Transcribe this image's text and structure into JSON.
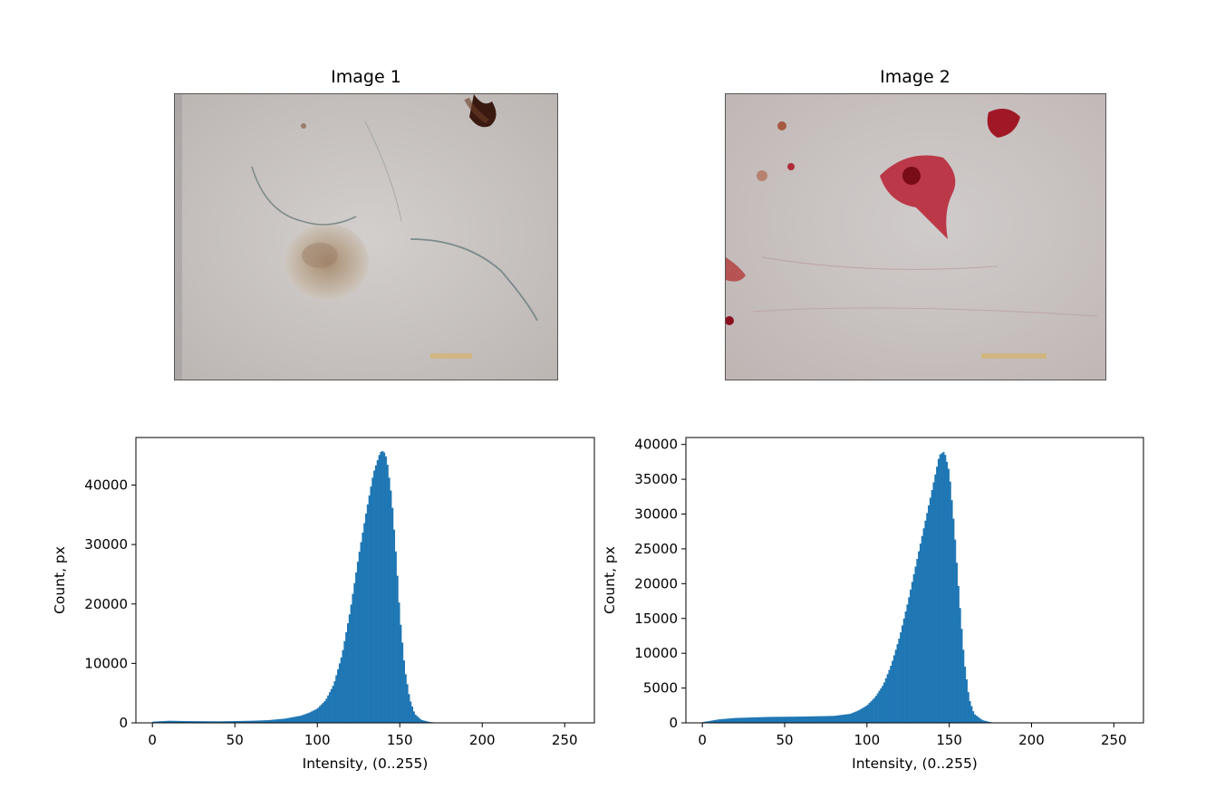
{
  "images": [
    {
      "title": "Image 1",
      "description_icon": "dermoscopy-photo-icon",
      "colors": {
        "skin": "#cdc8c5",
        "lesion": "#b79f86",
        "spot": "#3a1a10"
      }
    },
    {
      "title": "Image 2",
      "description_icon": "dermoscopy-photo-icon",
      "colors": {
        "skin": "#c9c3c1",
        "lesion": "#b8283a",
        "spot": "#7a0c16"
      }
    }
  ],
  "colors": {
    "bar": "#1f77b4",
    "axis": "#000000"
  },
  "chart_data": [
    {
      "type": "bar",
      "subtype": "histogram",
      "xlabel": "Intensity, (0..255)",
      "ylabel": "Count, px",
      "xlim": [
        -10,
        268
      ],
      "ylim": [
        0,
        48000
      ],
      "xticks": [
        0,
        50,
        100,
        150,
        200,
        250
      ],
      "yticks": [
        0,
        10000,
        20000,
        30000,
        40000
      ],
      "grid": false,
      "bin_width": 1,
      "keypoints": [
        [
          0,
          200
        ],
        [
          10,
          350
        ],
        [
          20,
          300
        ],
        [
          40,
          250
        ],
        [
          60,
          350
        ],
        [
          70,
          450
        ],
        [
          80,
          700
        ],
        [
          90,
          1200
        ],
        [
          95,
          1700
        ],
        [
          100,
          2400
        ],
        [
          105,
          3800
        ],
        [
          110,
          6500
        ],
        [
          115,
          11500
        ],
        [
          120,
          19000
        ],
        [
          125,
          28000
        ],
        [
          130,
          36000
        ],
        [
          134,
          42000
        ],
        [
          138,
          45500
        ],
        [
          140,
          45800
        ],
        [
          142,
          44500
        ],
        [
          145,
          38000
        ],
        [
          148,
          27000
        ],
        [
          150,
          18000
        ],
        [
          153,
          9000
        ],
        [
          156,
          4000
        ],
        [
          159,
          1500
        ],
        [
          163,
          500
        ],
        [
          168,
          150
        ],
        [
          172,
          40
        ],
        [
          180,
          0
        ],
        [
          255,
          0
        ]
      ]
    },
    {
      "type": "bar",
      "subtype": "histogram",
      "xlabel": "Intensity, (0..255)",
      "ylabel": "Count, px",
      "xlim": [
        -10,
        268
      ],
      "ylim": [
        0,
        41000
      ],
      "xticks": [
        0,
        50,
        100,
        150,
        200,
        250
      ],
      "yticks": [
        0,
        5000,
        10000,
        15000,
        20000,
        25000,
        30000,
        35000,
        40000
      ],
      "grid": false,
      "bin_width": 1,
      "keypoints": [
        [
          0,
          100
        ],
        [
          5,
          300
        ],
        [
          10,
          500
        ],
        [
          20,
          700
        ],
        [
          40,
          850
        ],
        [
          60,
          900
        ],
        [
          80,
          1000
        ],
        [
          90,
          1300
        ],
        [
          95,
          1800
        ],
        [
          100,
          2500
        ],
        [
          105,
          3700
        ],
        [
          110,
          5500
        ],
        [
          115,
          8500
        ],
        [
          120,
          12500
        ],
        [
          125,
          17500
        ],
        [
          130,
          23000
        ],
        [
          135,
          28500
        ],
        [
          140,
          34000
        ],
        [
          144,
          38500
        ],
        [
          147,
          39000
        ],
        [
          150,
          36000
        ],
        [
          153,
          28000
        ],
        [
          156,
          18000
        ],
        [
          159,
          9000
        ],
        [
          162,
          3500
        ],
        [
          165,
          1300
        ],
        [
          170,
          400
        ],
        [
          175,
          100
        ],
        [
          180,
          0
        ],
        [
          255,
          0
        ]
      ]
    }
  ]
}
